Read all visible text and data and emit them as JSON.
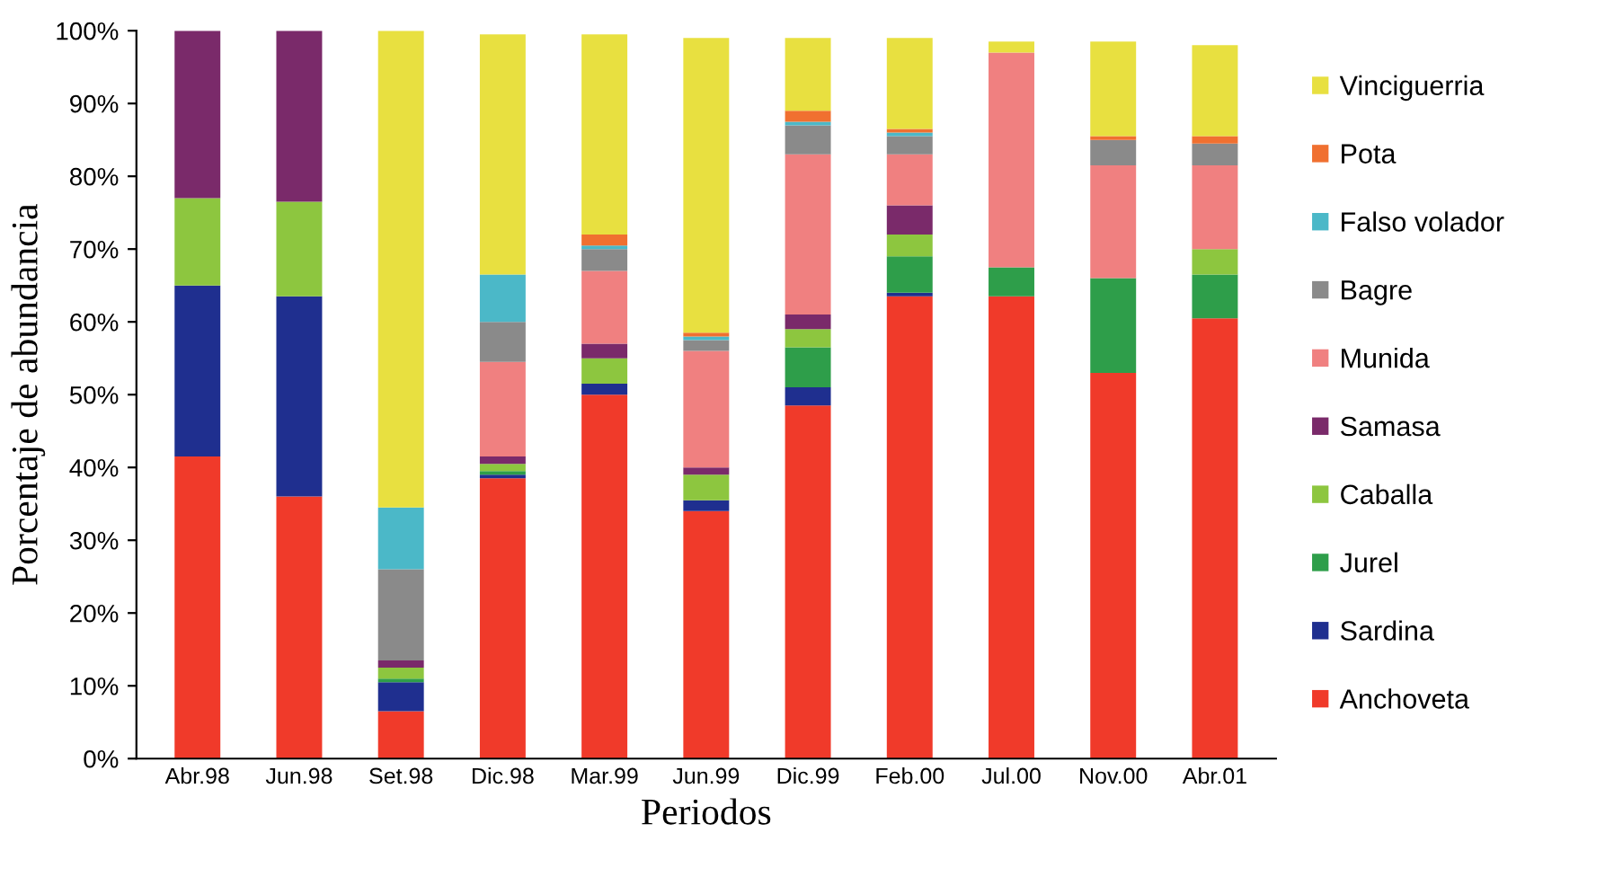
{
  "chart_data": {
    "type": "bar",
    "stacked": true,
    "xlabel": "Periodos",
    "ylabel": "Porcentaje de abundancia",
    "categories": [
      "Abr.98",
      "Jun.98",
      "Set.98",
      "Dic.98",
      "Mar.99",
      "Jun.99",
      "Dic.99",
      "Feb.00",
      "Jul.00",
      "Nov.00",
      "Abr.01"
    ],
    "ylim": [
      0,
      100
    ],
    "yticks": [
      {
        "value": 0,
        "label": "0%"
      },
      {
        "value": 10,
        "label": "10%"
      },
      {
        "value": 20,
        "label": "20%"
      },
      {
        "value": 30,
        "label": "30%"
      },
      {
        "value": 40,
        "label": "40%"
      },
      {
        "value": 50,
        "label": "50%"
      },
      {
        "value": 60,
        "label": "60%"
      },
      {
        "value": 70,
        "label": "70%"
      },
      {
        "value": 80,
        "label": "80%"
      },
      {
        "value": 90,
        "label": "90%"
      },
      {
        "value": 100,
        "label": "100%"
      }
    ],
    "grid": false,
    "legend": "right",
    "series": [
      {
        "name": "Anchoveta",
        "color": "#f03a2a",
        "values": [
          41.5,
          36,
          6.5,
          38.5,
          50,
          34,
          48.5,
          63.5,
          63.5,
          53,
          60.5
        ]
      },
      {
        "name": "Sardina",
        "color": "#1f2f8f",
        "values": [
          23.5,
          27.5,
          4,
          0.5,
          1.5,
          1.5,
          2.5,
          0.5,
          0,
          0,
          0
        ]
      },
      {
        "name": "Jurel",
        "color": "#2e9e4a",
        "values": [
          0,
          0,
          0.5,
          0.5,
          0,
          0,
          5.5,
          5,
          4,
          13,
          6
        ]
      },
      {
        "name": "Caballa",
        "color": "#8dc63f",
        "values": [
          12,
          13,
          1.5,
          1,
          3.5,
          3.5,
          2.5,
          3,
          0,
          0,
          3.5
        ]
      },
      {
        "name": "Samasa",
        "color": "#7a2a6a",
        "values": [
          23,
          23.5,
          1,
          1,
          2,
          1,
          2,
          4,
          0,
          0,
          0
        ]
      },
      {
        "name": "Munida",
        "color": "#f08080",
        "values": [
          0,
          0,
          0,
          13,
          10,
          16,
          22,
          7,
          29.5,
          15.5,
          11.5
        ]
      },
      {
        "name": "Bagre",
        "color": "#8a8a8a",
        "values": [
          0,
          0,
          12.5,
          5.5,
          3,
          1.5,
          4,
          2.5,
          0,
          3.5,
          3
        ]
      },
      {
        "name": "Falso volador",
        "color": "#4bb8c8",
        "values": [
          0,
          0,
          8.5,
          6.5,
          0.5,
          0.5,
          0.5,
          0.5,
          0,
          0,
          0
        ]
      },
      {
        "name": "Pota",
        "color": "#f07030",
        "values": [
          0,
          0,
          0,
          0,
          1.5,
          0.5,
          1.5,
          0.5,
          0,
          0.5,
          1
        ]
      },
      {
        "name": "Vinciguerria",
        "color": "#e8e040",
        "values": [
          0,
          0,
          65.5,
          33,
          27.5,
          40.5,
          10,
          12.5,
          1.5,
          13,
          12.5
        ]
      }
    ]
  }
}
